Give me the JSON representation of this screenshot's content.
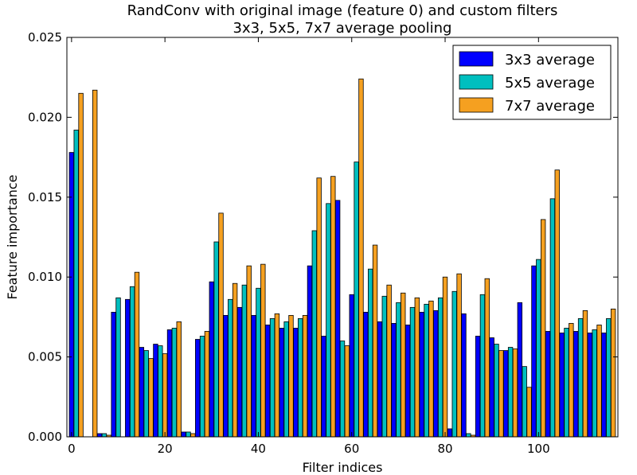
{
  "chart_data": {
    "type": "bar",
    "title_lines": [
      "RandConv with original image (feature 0) and custom filters",
      "3x3, 5x5, 7x7 average pooling"
    ],
    "xlabel": "Filter indices",
    "ylabel": "Feature importance",
    "xlim": [
      -1,
      117
    ],
    "ylim": [
      0,
      0.025
    ],
    "x_ticks": [
      0,
      20,
      40,
      60,
      80,
      100
    ],
    "y_ticks": [
      0.0,
      0.005,
      0.01,
      0.015,
      0.02,
      0.025
    ],
    "x_tick_labels": [
      "0",
      "20",
      "40",
      "60",
      "80",
      "100"
    ],
    "y_tick_labels": [
      "0.000",
      "0.005",
      "0.010",
      "0.015",
      "0.020",
      "0.025"
    ],
    "grid": false,
    "legend_position": "top-right",
    "series": [
      {
        "name": "3x3 average",
        "color": "#0000ff",
        "x": [
          0,
          6,
          9,
          12,
          15,
          18,
          21,
          24,
          27,
          30,
          33,
          36,
          39,
          42,
          45,
          48,
          51,
          54,
          57,
          60,
          63,
          66,
          69,
          72,
          75,
          78,
          81,
          84,
          87,
          90,
          93,
          96,
          99,
          102,
          105,
          108,
          111,
          114
        ],
        "values": [
          0.0178,
          0.0002,
          0.0078,
          0.0086,
          0.0056,
          0.0058,
          0.0067,
          0.0003,
          0.0061,
          0.0097,
          0.0076,
          0.0081,
          0.0076,
          0.007,
          0.0068,
          0.0068,
          0.0107,
          0.0063,
          0.0148,
          0.0089,
          0.0078,
          0.0072,
          0.0071,
          0.007,
          0.0078,
          0.0079,
          0.0005,
          0.0077,
          0.0063,
          0.0062,
          0.0054,
          0.0084,
          0.0107,
          0.0066,
          0.0065,
          0.0066,
          0.0065,
          0.0065
        ]
      },
      {
        "name": "5x5 average",
        "color": "#00bfbf",
        "x": [
          1,
          7,
          10,
          13,
          16,
          19,
          22,
          25,
          28,
          31,
          34,
          37,
          40,
          43,
          46,
          49,
          52,
          55,
          58,
          61,
          64,
          67,
          70,
          73,
          76,
          79,
          82,
          85,
          88,
          91,
          94,
          97,
          100,
          103,
          106,
          109,
          112,
          115
        ],
        "values": [
          0.0192,
          0.0002,
          0.0087,
          0.0094,
          0.0054,
          0.0057,
          0.0068,
          0.0003,
          0.0063,
          0.0122,
          0.0086,
          0.0095,
          0.0093,
          0.0074,
          0.0072,
          0.0074,
          0.0129,
          0.0146,
          0.006,
          0.0172,
          0.0105,
          0.0088,
          0.0084,
          0.0081,
          0.0083,
          0.0087,
          0.0091,
          0.0002,
          0.0089,
          0.0058,
          0.0056,
          0.0044,
          0.0111,
          0.0149,
          0.0068,
          0.0074,
          0.0067,
          0.0074
        ]
      },
      {
        "name": "7x7 average",
        "color": "#f5a020",
        "x": [
          2,
          5,
          8,
          14,
          17,
          20,
          23,
          26,
          29,
          32,
          35,
          38,
          41,
          44,
          47,
          50,
          53,
          56,
          59,
          62,
          65,
          68,
          71,
          74,
          77,
          80,
          83,
          86,
          89,
          92,
          95,
          98,
          101,
          104,
          107,
          110,
          113,
          116
        ],
        "values": [
          0.0215,
          0.0217,
          0.0001,
          0.0103,
          0.0049,
          0.0052,
          0.0072,
          0.0002,
          0.0066,
          0.014,
          0.0096,
          0.0107,
          0.0108,
          0.0077,
          0.0076,
          0.0076,
          0.0162,
          0.0163,
          0.0057,
          0.0224,
          0.012,
          0.0095,
          0.009,
          0.0087,
          0.0085,
          0.01,
          0.0102,
          0.0001,
          0.0099,
          0.0054,
          0.0055,
          0.0031,
          0.0136,
          0.0167,
          0.0071,
          0.0079,
          0.007,
          0.008
        ]
      }
    ]
  }
}
